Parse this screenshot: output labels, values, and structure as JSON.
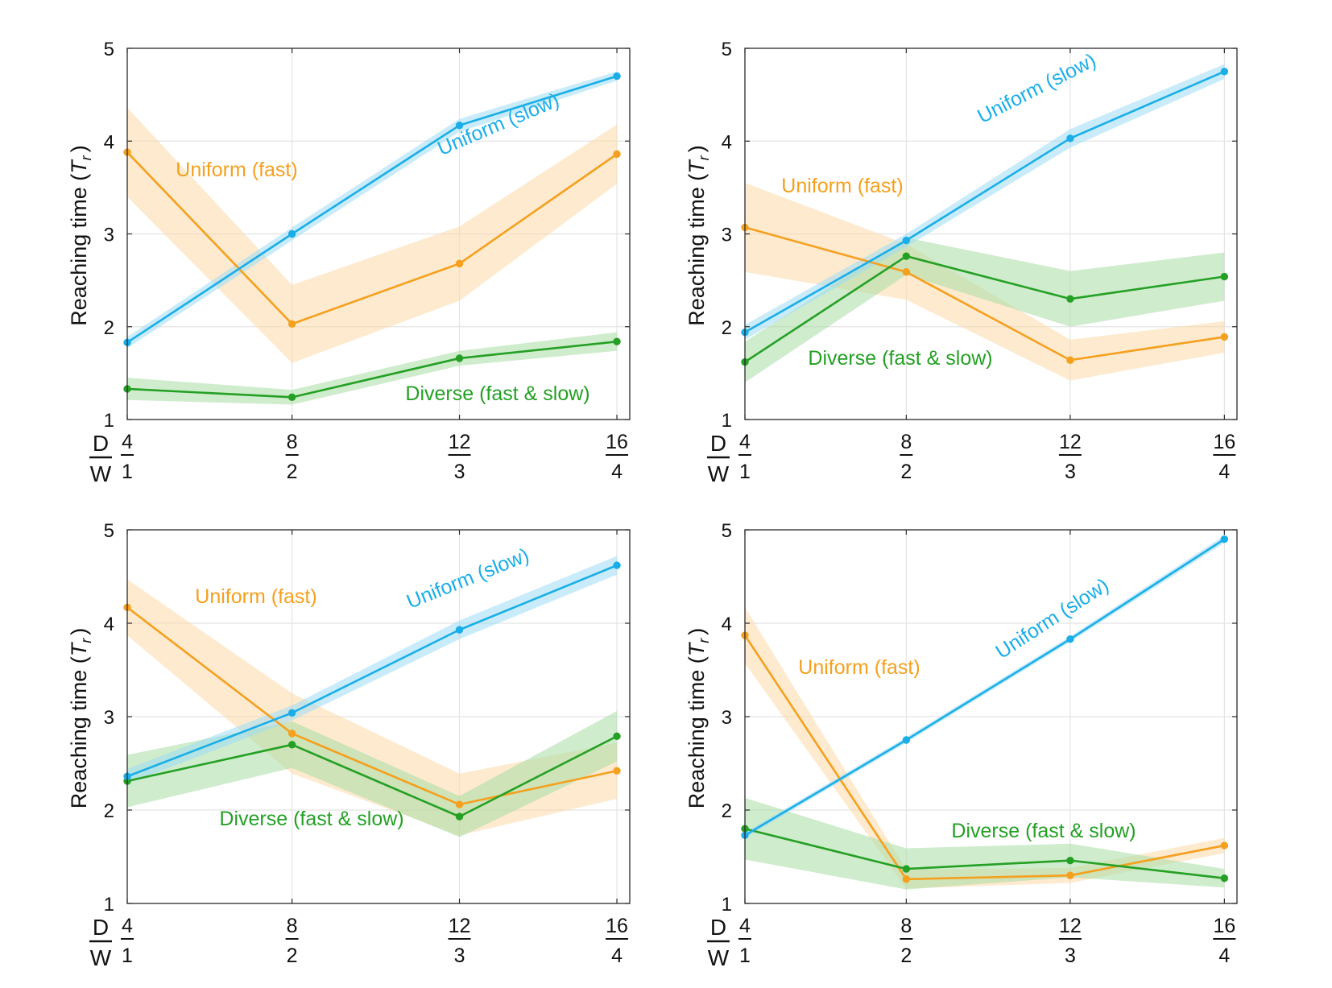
{
  "colors": {
    "uniform_slow": "#1AAEE8",
    "uniform_fast": "#F5A01E",
    "diverse": "#24A024",
    "band_slow": "#9FDCF6",
    "band_fast": "#FCD9A8",
    "band_diverse": "#A8DCA4",
    "grid": "#E4E4E4"
  },
  "chart_data": [
    {
      "type": "line",
      "ylabel": "Reaching time (T_r)",
      "ylabel_text": "Reaching time (",
      "ylabel_symbol": "T",
      "ylabel_sub": "r",
      "ylabel_close": ")",
      "ylim": [
        1,
        5
      ],
      "yticks": [
        "1",
        "2",
        "3",
        "4",
        "5"
      ],
      "x": [
        4,
        8,
        12,
        16
      ],
      "xlabel_num": "D",
      "xlabel_den": "W",
      "xtick_num": [
        "4",
        "8",
        "12",
        "16"
      ],
      "xtick_den": [
        "1",
        "2",
        "3",
        "4"
      ],
      "grid": true,
      "series": [
        {
          "name": "Uniform (slow)",
          "label": "Uniform (slow)",
          "key": "uniform_slow",
          "values": [
            1.83,
            3.0,
            4.17,
            4.7
          ],
          "band": [
            0.06,
            0.07,
            0.07,
            0.05
          ]
        },
        {
          "name": "Uniform (fast)",
          "label": "Uniform (fast)",
          "key": "uniform_fast",
          "values": [
            3.88,
            2.03,
            2.68,
            3.86
          ],
          "band": [
            0.48,
            0.42,
            0.4,
            0.32
          ]
        },
        {
          "name": "Diverse (fast & slow)",
          "label": "Diverse (fast & slow)",
          "key": "diverse",
          "values": [
            1.33,
            1.24,
            1.66,
            1.84
          ],
          "band": [
            0.12,
            0.08,
            0.08,
            0.1
          ]
        }
      ]
    },
    {
      "type": "line",
      "ylabel": "Reaching time (T_r)",
      "ylabel_text": "Reaching time (",
      "ylabel_symbol": "T",
      "ylabel_sub": "r",
      "ylabel_close": ")",
      "ylim": [
        1,
        5
      ],
      "yticks": [
        "1",
        "2",
        "3",
        "4",
        "5"
      ],
      "x": [
        4,
        8,
        12,
        16
      ],
      "xlabel_num": "D",
      "xlabel_den": "W",
      "xtick_num": [
        "4",
        "8",
        "12",
        "16"
      ],
      "xtick_den": [
        "1",
        "2",
        "3",
        "4"
      ],
      "grid": true,
      "series": [
        {
          "name": "Uniform (slow)",
          "label": "Uniform (slow)",
          "key": "uniform_slow",
          "values": [
            1.94,
            2.93,
            4.03,
            4.75
          ],
          "band": [
            0.08,
            0.07,
            0.1,
            0.08
          ]
        },
        {
          "name": "Uniform (fast)",
          "label": "Uniform (fast)",
          "key": "uniform_fast",
          "values": [
            3.07,
            2.59,
            1.64,
            1.89
          ],
          "band": [
            0.48,
            0.3,
            0.22,
            0.17
          ]
        },
        {
          "name": "Diverse (fast & slow)",
          "label": "Diverse (fast & slow)",
          "key": "diverse",
          "values": [
            1.62,
            2.76,
            2.3,
            2.54
          ],
          "band": [
            0.22,
            0.2,
            0.3,
            0.26
          ]
        }
      ]
    },
    {
      "type": "line",
      "ylabel": "Reaching time (T_r)",
      "ylabel_text": "Reaching time (",
      "ylabel_symbol": "T",
      "ylabel_sub": "r",
      "ylabel_close": ")",
      "ylim": [
        1,
        5
      ],
      "yticks": [
        "1",
        "2",
        "3",
        "4",
        "5"
      ],
      "x": [
        4,
        8,
        12,
        16
      ],
      "xlabel_num": "D",
      "xlabel_den": "W",
      "xtick_num": [
        "4",
        "8",
        "12",
        "16"
      ],
      "xtick_den": [
        "1",
        "2",
        "3",
        "4"
      ],
      "grid": true,
      "series": [
        {
          "name": "Uniform (slow)",
          "label": "Uniform (slow)",
          "key": "uniform_slow",
          "values": [
            2.36,
            3.04,
            3.93,
            4.62
          ],
          "band": [
            0.08,
            0.08,
            0.1,
            0.1
          ]
        },
        {
          "name": "Uniform (fast)",
          "label": "Uniform (fast)",
          "key": "uniform_fast",
          "values": [
            4.17,
            2.82,
            2.06,
            2.42
          ],
          "band": [
            0.3,
            0.43,
            0.33,
            0.3
          ]
        },
        {
          "name": "Diverse (fast & slow)",
          "label": "Diverse (fast & slow)",
          "key": "diverse",
          "values": [
            2.31,
            2.7,
            1.93,
            2.79
          ],
          "band": [
            0.28,
            0.25,
            0.22,
            0.27
          ]
        }
      ]
    },
    {
      "type": "line",
      "ylabel": "Reaching time (T_r)",
      "ylabel_text": "Reaching time (",
      "ylabel_symbol": "T",
      "ylabel_sub": "r",
      "ylabel_close": ")",
      "ylim": [
        1,
        5
      ],
      "yticks": [
        "1",
        "2",
        "3",
        "4",
        "5"
      ],
      "x": [
        4,
        8,
        12,
        16
      ],
      "xlabel_num": "D",
      "xlabel_den": "W",
      "xtick_num": [
        "4",
        "8",
        "12",
        "16"
      ],
      "xtick_den": [
        "1",
        "2",
        "3",
        "4"
      ],
      "grid": true,
      "series": [
        {
          "name": "Uniform (slow)",
          "label": "Uniform (slow)",
          "key": "uniform_slow",
          "values": [
            1.73,
            2.75,
            3.83,
            4.9
          ],
          "band": [
            0.03,
            0.03,
            0.03,
            0.04
          ]
        },
        {
          "name": "Uniform (fast)",
          "label": "Uniform (fast)",
          "key": "uniform_fast",
          "values": [
            3.87,
            1.26,
            1.3,
            1.62
          ],
          "band": [
            0.3,
            0.1,
            0.08,
            0.08
          ]
        },
        {
          "name": "Diverse (fast & slow)",
          "label": "Diverse (fast & slow)",
          "key": "diverse",
          "values": [
            1.8,
            1.37,
            1.46,
            1.27
          ],
          "band": [
            0.33,
            0.22,
            0.18,
            0.1
          ]
        }
      ]
    }
  ]
}
